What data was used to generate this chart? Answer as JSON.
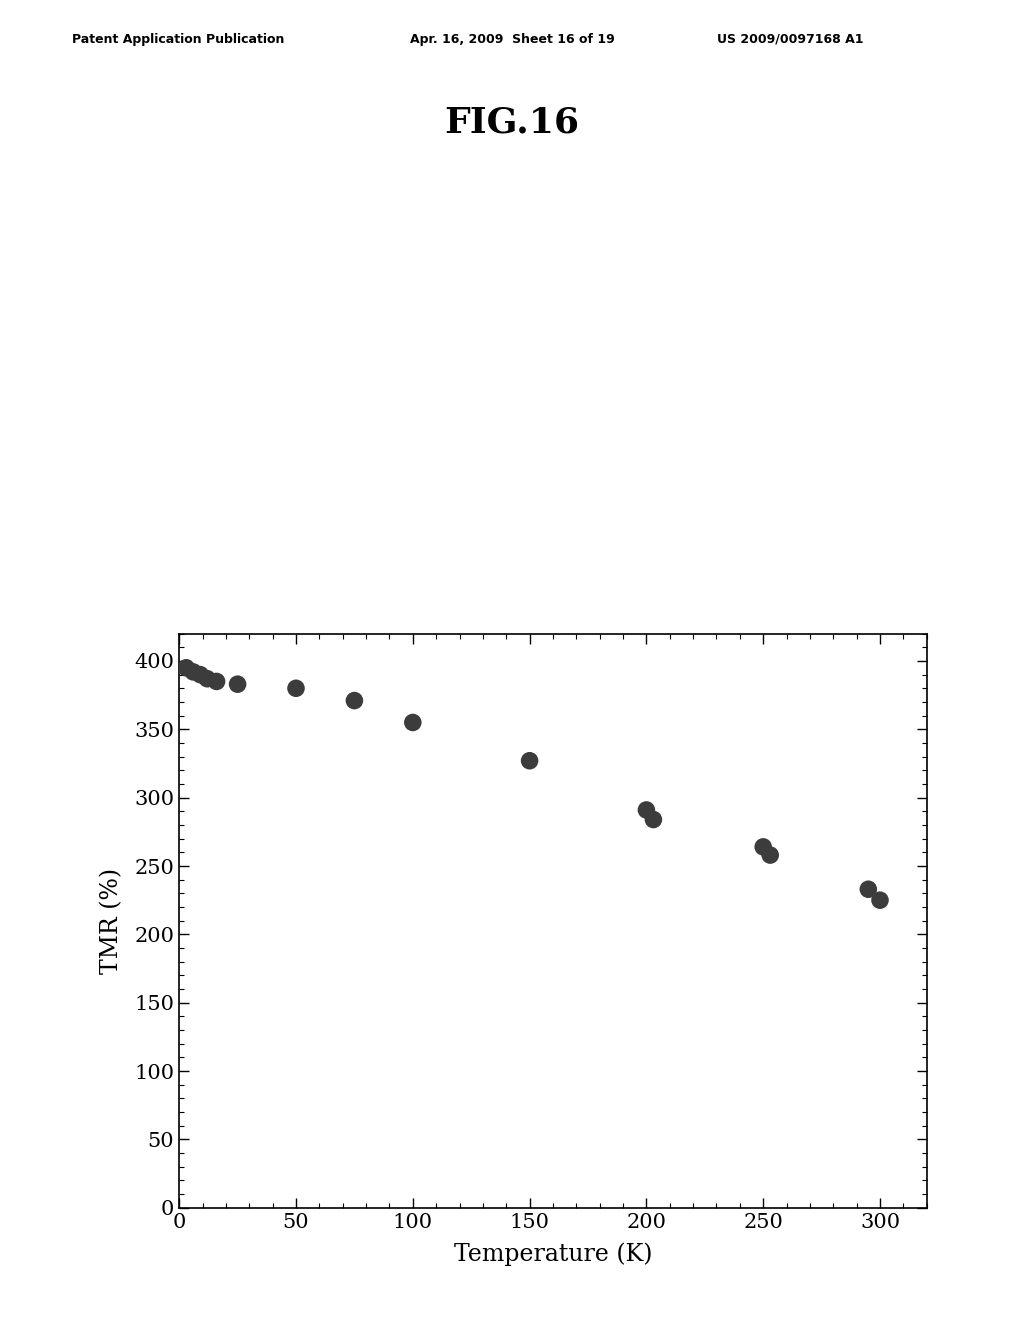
{
  "title": "FIG.16",
  "header_left": "Patent Application Publication",
  "header_mid": "Apr. 16, 2009  Sheet 16 of 19",
  "header_right": "US 2009/0097168 A1",
  "xlabel": "Temperature (K)",
  "ylabel": "TMR (%)",
  "xlim": [
    0,
    320
  ],
  "ylim": [
    0,
    420
  ],
  "xticks": [
    0,
    50,
    100,
    150,
    200,
    250,
    300
  ],
  "yticks": [
    0,
    50,
    100,
    150,
    200,
    250,
    300,
    350,
    400
  ],
  "scatter_data": [
    [
      3,
      395
    ],
    [
      6,
      392
    ],
    [
      9,
      390
    ],
    [
      12,
      387
    ],
    [
      16,
      385
    ],
    [
      25,
      383
    ],
    [
      50,
      380
    ],
    [
      75,
      371
    ],
    [
      100,
      355
    ],
    [
      150,
      327
    ],
    [
      200,
      291
    ],
    [
      203,
      284
    ],
    [
      250,
      264
    ],
    [
      253,
      258
    ],
    [
      295,
      233
    ],
    [
      300,
      225
    ]
  ],
  "scatter_color": "#3c3c3c",
  "background_color": "#ffffff",
  "fig_title_fontsize": 26,
  "header_fontsize": 9,
  "axis_label_fontsize": 17,
  "tick_fontsize": 15
}
